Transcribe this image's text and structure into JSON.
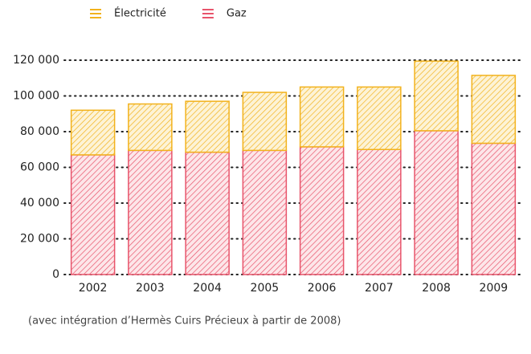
{
  "chart_data": {
    "type": "stacked_bar",
    "categories": [
      "2002",
      "2003",
      "2004",
      "2005",
      "2006",
      "2007",
      "2008",
      "2009"
    ],
    "series": [
      {
        "name": "Gaz",
        "color": "#e8546b",
        "values": [
          67000,
          69500,
          68500,
          69500,
          71500,
          70000,
          80500,
          73500
        ]
      },
      {
        "name": "Électricité",
        "color": "#f2b21c",
        "values": [
          25000,
          26000,
          28500,
          32500,
          33500,
          35000,
          39000,
          38000
        ]
      }
    ],
    "legend_order": [
      1,
      0
    ],
    "ylim": [
      0,
      120000
    ],
    "yticks": [
      {
        "value": 0,
        "label": "0"
      },
      {
        "value": 20000,
        "label": "20 000"
      },
      {
        "value": 40000,
        "label": "40 000"
      },
      {
        "value": 60000,
        "label": "60 000"
      },
      {
        "value": 80000,
        "label": "80 000"
      },
      {
        "value": 100000,
        "label": "100 000"
      },
      {
        "value": 120000,
        "label": "120 000"
      }
    ],
    "grid": true,
    "legend": "top",
    "footnote": "(avec intégration d’Hermès Cuirs Précieux à partir de 2008)"
  }
}
